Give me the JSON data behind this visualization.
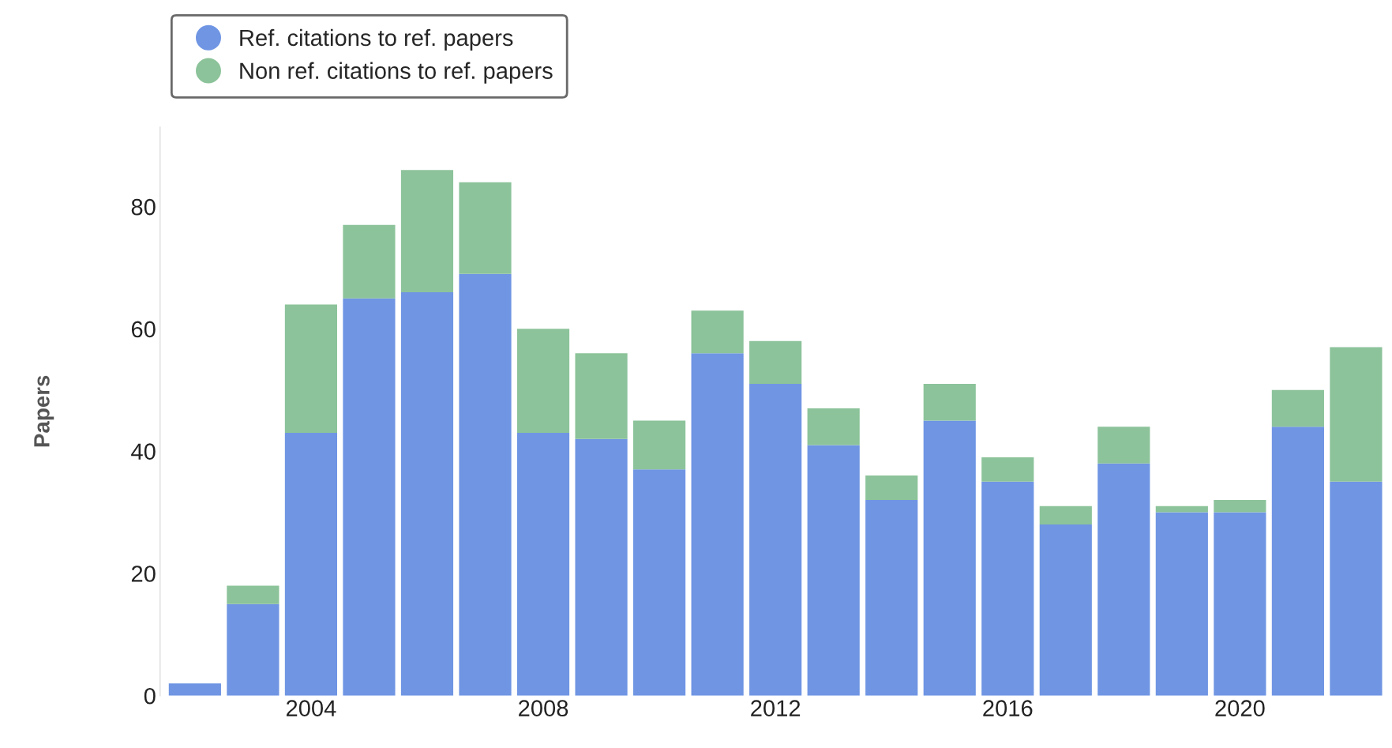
{
  "chart_data": {
    "type": "bar",
    "ylabel": "Papers",
    "stacked": true,
    "legend": "top left",
    "grid": false,
    "x": [
      2002,
      2003,
      2004,
      2005,
      2006,
      2007,
      2008,
      2009,
      2010,
      2011,
      2012,
      2013,
      2014,
      2015,
      2016,
      2017,
      2018,
      2019,
      2020,
      2021,
      2022
    ],
    "series": [
      {
        "name": "Ref. citations to ref. papers",
        "color": "#6f95e3",
        "values": [
          2,
          15,
          43,
          65,
          66,
          69,
          43,
          42,
          37,
          56,
          51,
          41,
          32,
          45,
          35,
          28,
          38,
          30,
          30,
          44,
          35
        ]
      },
      {
        "name": "Non ref. citations to ref. papers",
        "color": "#8cc39a",
        "values": [
          0,
          3,
          21,
          12,
          20,
          15,
          17,
          14,
          8,
          7,
          7,
          6,
          4,
          6,
          4,
          3,
          6,
          1,
          2,
          6,
          22
        ]
      }
    ],
    "xlim": [
      2001.4,
      2022.5
    ],
    "xticks": [
      2004,
      2008,
      2012,
      2016,
      2020
    ],
    "ylim": [
      0,
      93
    ],
    "yticks": [
      0,
      20,
      40,
      60,
      80
    ]
  }
}
